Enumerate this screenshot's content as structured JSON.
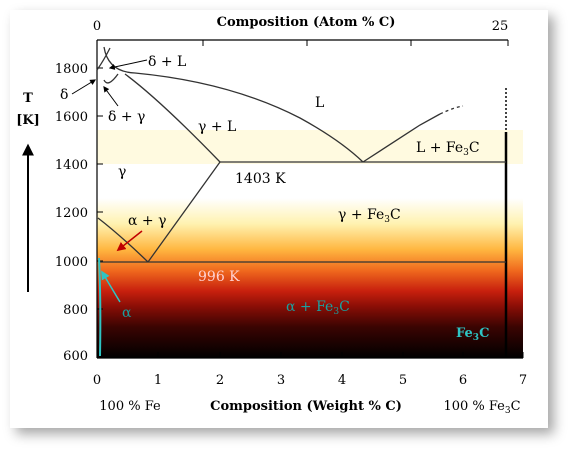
{
  "top_axis": {
    "title": "Composition  (Atom % C)",
    "tick_labels": [
      "0",
      "25"
    ]
  },
  "left_axis": {
    "title_line1": "T",
    "title_line2": "[K]",
    "tick_labels": [
      "1800",
      "1600",
      "1400",
      "1200",
      "1000",
      "800",
      "600"
    ]
  },
  "bottom_axis": {
    "title": "Composition (Weight % C)",
    "tick_labels": [
      "0",
      "1",
      "2",
      "3",
      "4",
      "5",
      "6",
      "7"
    ],
    "left_end": "100 % Fe",
    "right_end_prefix": "100 % Fe",
    "right_end_sub": "3",
    "right_end_suffix": "C"
  },
  "phase_labels": {
    "liquid": "L",
    "delta": "δ",
    "delta_plus_l": "δ + L",
    "delta_plus_gamma": "δ + γ",
    "gamma": "γ",
    "gamma_plus_l": "γ + L",
    "l_plus_fe3c": {
      "a": "L + Fe",
      "sub": "3",
      "b": "C"
    },
    "alpha_plus_gamma": "α + γ",
    "gamma_plus_fe3c": {
      "a": "γ + Fe",
      "sub": "3",
      "b": "C"
    },
    "alpha": "α",
    "alpha_plus_fe3c": {
      "a": "α + Fe",
      "sub": "3",
      "b": "C"
    },
    "fe3c": {
      "a": "Fe",
      "sub": "3",
      "b": "C"
    }
  },
  "isotherm_labels": {
    "eutectic": "1403 K",
    "eutectoid": "996 K"
  },
  "colors": {
    "liquid_region": "#ffffff",
    "hot": "#ffd24a",
    "mid": "#e8501a",
    "deep": "#a8120a",
    "cool": "#000000",
    "alpha_boundary": "#2ec4c4",
    "fe3c_label": "#2ec4c4",
    "alpha_text": "#1aa0a0"
  },
  "chart_data": {
    "type": "phase-diagram",
    "xlabel": "Composition (Weight % C)",
    "x2label": "Composition  (Atom % C)",
    "ylabel": "T [K]",
    "xlim": [
      0,
      7
    ],
    "ylim": [
      600,
      1850
    ],
    "isotherms": [
      {
        "label": "1403 K",
        "T": 1403,
        "x_from": 2.0,
        "x_to": 6.7
      },
      {
        "label": "996 K",
        "T": 996,
        "x_from": 0.02,
        "x_to": 6.7
      }
    ],
    "liquidus": [
      [
        0,
        1765
      ],
      [
        2.0,
        1670
      ],
      [
        4.3,
        1403
      ],
      [
        5.5,
        1620
      ]
    ],
    "solidus": [
      [
        0,
        1745
      ],
      [
        2.0,
        1403
      ]
    ],
    "acm_line": [
      [
        2.0,
        1403
      ],
      [
        0.8,
        996
      ]
    ],
    "a3_line": [
      [
        0,
        1185
      ],
      [
        0.8,
        996
      ]
    ]
  }
}
